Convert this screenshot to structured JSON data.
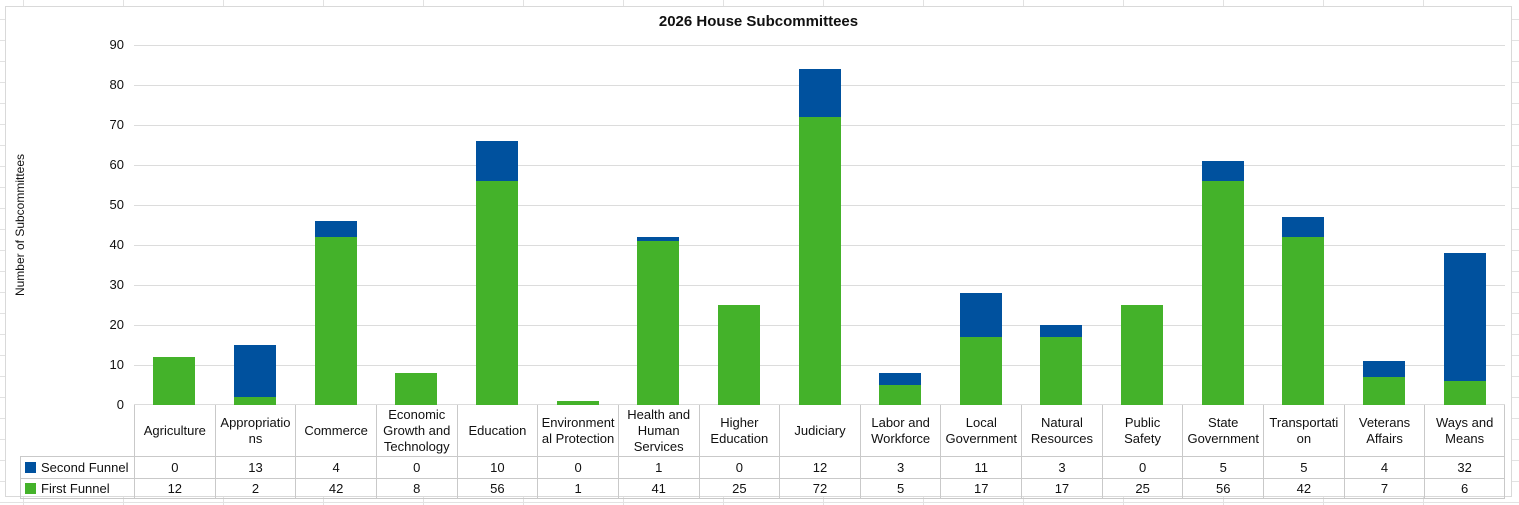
{
  "chart_data": {
    "type": "bar",
    "stacked": true,
    "title": "2026 House Subcommittees",
    "xlabel": "",
    "ylabel": "Number of Subcommittees",
    "ylim": [
      0,
      90
    ],
    "y_tick_step": 10,
    "grid": true,
    "legend_position": "data-table-left",
    "categories": [
      "Agriculture",
      "Appropriations",
      "Commerce",
      "Economic Growth and Technology",
      "Education",
      "Environmental Protection",
      "Health and Human Services",
      "Higher Education",
      "Judiciary",
      "Labor and Workforce",
      "Local Government",
      "Natural Resources",
      "Public Safety",
      "State Government",
      "Transportation",
      "Veterans Affairs",
      "Ways and Means"
    ],
    "series": [
      {
        "name": "Second Funnel",
        "color": "#00519E",
        "values": [
          0,
          13,
          4,
          0,
          10,
          0,
          1,
          0,
          12,
          3,
          11,
          3,
          0,
          5,
          5,
          4,
          32
        ]
      },
      {
        "name": "First Funnel",
        "color": "#44B22A",
        "values": [
          12,
          2,
          42,
          8,
          56,
          1,
          41,
          25,
          72,
          5,
          17,
          17,
          25,
          56,
          42,
          7,
          6
        ]
      }
    ],
    "totals": [
      12,
      15,
      46,
      8,
      66,
      1,
      42,
      25,
      84,
      8,
      28,
      20,
      25,
      61,
      47,
      11,
      38
    ]
  },
  "colors": {
    "gridline": "#dcdcdc",
    "table_border": "#c9c9c9",
    "card_border": "#d9d9d9",
    "text": "#111111"
  }
}
